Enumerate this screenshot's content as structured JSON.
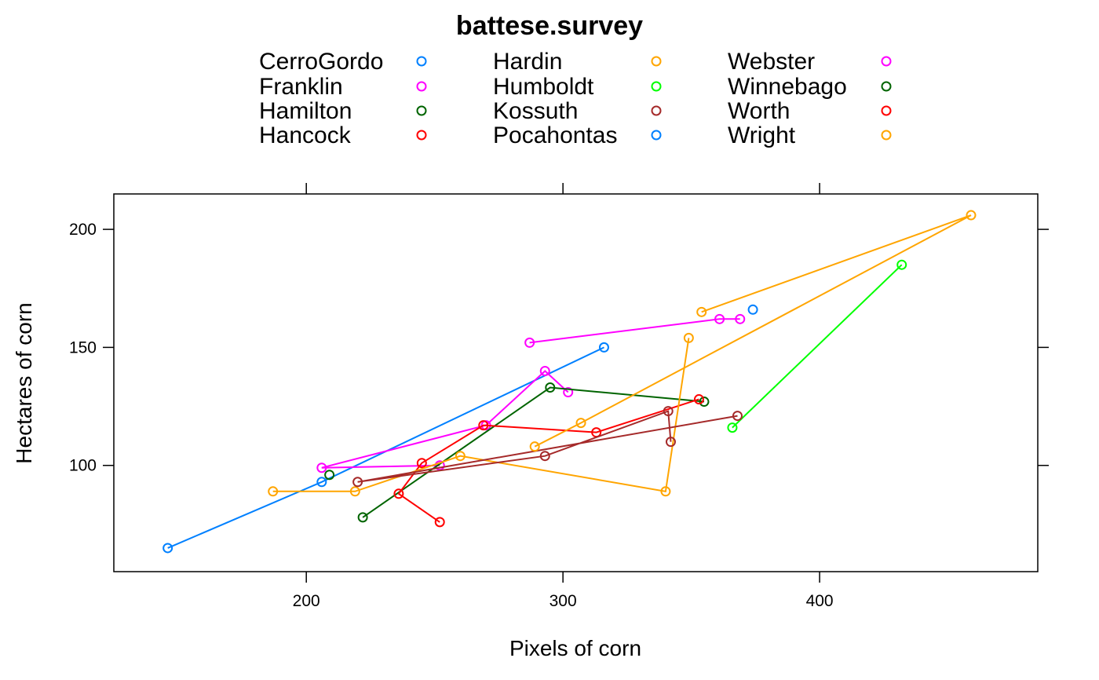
{
  "chart_data": {
    "type": "scatter",
    "title": "battese.survey",
    "xlabel": "Pixels of corn",
    "ylabel": "Hectares of corn",
    "xlim": [
      125,
      485
    ],
    "ylim": [
      55,
      215
    ],
    "xticks": [
      200,
      300,
      400
    ],
    "yticks": [
      100,
      150,
      200
    ],
    "grid": false,
    "legend_position": "top",
    "legend_columns": 3,
    "series": [
      {
        "name": "CerroGordo",
        "color": "#0080ff",
        "points": [
          [
            316,
            150
          ],
          [
            206,
            93
          ],
          [
            146,
            65
          ]
        ]
      },
      {
        "name": "Franklin",
        "color": "#ff00ff",
        "points": [
          [
            252,
            100
          ],
          [
            206,
            99
          ],
          [
            270,
            117
          ],
          [
            293,
            140
          ],
          [
            302,
            131
          ]
        ]
      },
      {
        "name": "Hamilton",
        "color": "#006400",
        "points": [
          [
            222,
            78
          ],
          [
            295,
            133
          ],
          [
            355,
            127
          ]
        ]
      },
      {
        "name": "Hancock",
        "color": "#ff0000",
        "points": [
          [
            252,
            76
          ],
          [
            236,
            88
          ],
          [
            245,
            101
          ],
          [
            269,
            117
          ],
          [
            313,
            114
          ],
          [
            353,
            128
          ]
        ]
      },
      {
        "name": "Hardin",
        "color": "#ffa500",
        "points": [
          [
            349,
            154
          ],
          [
            340,
            89
          ],
          [
            260,
            104
          ],
          [
            219,
            89
          ],
          [
            187,
            89
          ]
        ]
      },
      {
        "name": "Humboldt",
        "color": "#00ff00",
        "points": [
          [
            366,
            116
          ],
          [
            432,
            185
          ]
        ]
      },
      {
        "name": "Kossuth",
        "color": "#a52a2a",
        "points": [
          [
            342,
            110
          ],
          [
            341,
            123
          ],
          [
            293,
            104
          ],
          [
            220,
            93
          ],
          [
            368,
            121
          ]
        ]
      },
      {
        "name": "Pocahontas",
        "color": "#0080ff",
        "points": [
          [
            374,
            166
          ]
        ]
      },
      {
        "name": "Webster",
        "color": "#ff00ff",
        "points": [
          [
            287,
            152
          ],
          [
            361,
            162
          ],
          [
            369,
            162
          ]
        ]
      },
      {
        "name": "Winnebago",
        "color": "#006400",
        "points": [
          [
            209,
            96
          ]
        ]
      },
      {
        "name": "Worth",
        "color": "#ff0000",
        "points": []
      },
      {
        "name": "Wright",
        "color": "#ffa500",
        "points": [
          [
            289,
            108
          ],
          [
            307,
            118
          ],
          [
            459,
            206
          ],
          [
            354,
            165
          ]
        ]
      }
    ]
  }
}
